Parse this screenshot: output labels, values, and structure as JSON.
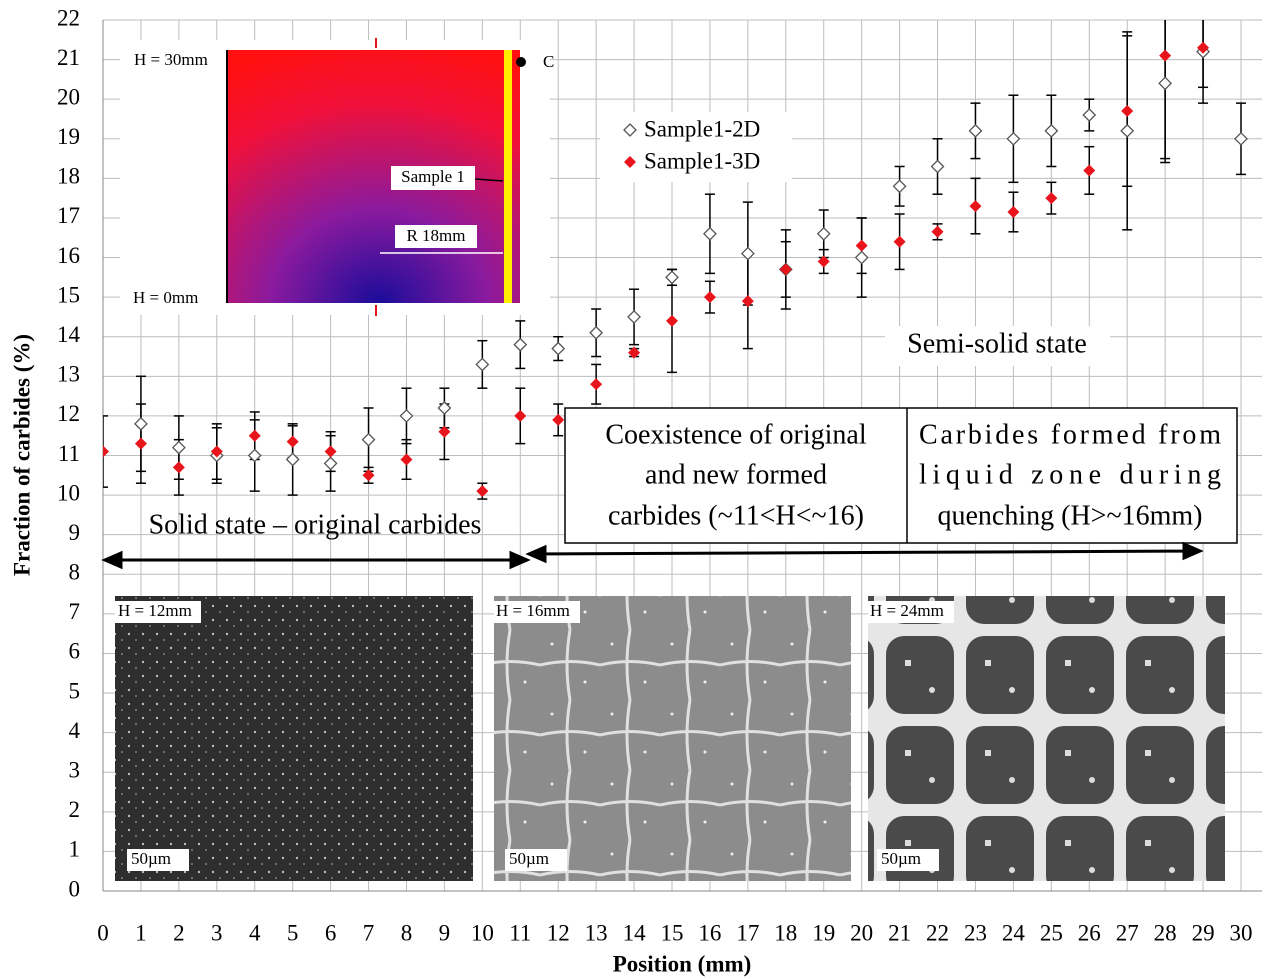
{
  "chart_data": {
    "type": "scatter",
    "xlabel": "Position (mm)",
    "ylabel": "Fraction of carbides (%)",
    "x": [
      0,
      1,
      2,
      3,
      4,
      5,
      6,
      7,
      8,
      9,
      10,
      11,
      12,
      13,
      14,
      15,
      16,
      17,
      18,
      19,
      20,
      21,
      22,
      23,
      24,
      25,
      26,
      27,
      28,
      29,
      30
    ],
    "xlim": [
      0,
      30
    ],
    "ylim": [
      0,
      22
    ],
    "xticks": [
      0,
      1,
      2,
      3,
      4,
      5,
      6,
      7,
      8,
      9,
      10,
      11,
      12,
      13,
      14,
      15,
      16,
      17,
      18,
      19,
      20,
      21,
      22,
      23,
      24,
      25,
      26,
      27,
      28,
      29,
      30
    ],
    "yticks": [
      0,
      1,
      2,
      3,
      4,
      5,
      6,
      7,
      8,
      9,
      10,
      11,
      12,
      13,
      14,
      15,
      16,
      17,
      18,
      19,
      20,
      21,
      22
    ],
    "grid": true,
    "series": [
      {
        "name": "Sample1-2D",
        "color": "#555555",
        "marker": "open-diamond",
        "values": [
          null,
          11.8,
          11.2,
          11.0,
          11.0,
          10.9,
          10.8,
          11.4,
          12.0,
          12.2,
          13.3,
          13.8,
          13.7,
          14.1,
          14.5,
          15.5,
          16.6,
          16.1,
          15.7,
          16.6,
          16.0,
          17.8,
          18.3,
          19.2,
          19.0,
          19.2,
          19.6,
          19.2,
          20.4,
          21.2,
          19.0
        ],
        "errors": [
          null,
          1.2,
          0.8,
          0.7,
          0.9,
          0.9,
          0.7,
          0.8,
          0.7,
          0.5,
          0.6,
          0.6,
          0.3,
          0.6,
          0.7,
          0.2,
          1.0,
          1.3,
          0.7,
          0.6,
          1.0,
          0.5,
          0.7,
          0.7,
          1.1,
          0.9,
          0.4,
          2.5,
          2.0,
          1.3,
          0.9
        ]
      },
      {
        "name": "Sample1-3D",
        "color": "#e8141b",
        "marker": "filled-diamond",
        "values": [
          11.1,
          11.3,
          10.7,
          11.1,
          11.5,
          11.35,
          11.1,
          10.5,
          10.9,
          11.6,
          10.1,
          12.0,
          11.9,
          12.8,
          13.6,
          14.4,
          15.0,
          14.9,
          15.7,
          15.9,
          16.3,
          16.4,
          16.65,
          17.3,
          17.15,
          17.5,
          18.2,
          19.7,
          21.1,
          21.3,
          null
        ],
        "errors": [
          0.9,
          1.0,
          0.7,
          0.7,
          0.6,
          0.4,
          0.5,
          0.2,
          0.5,
          0.7,
          0.2,
          0.7,
          0.4,
          0.5,
          0.1,
          1.3,
          0.4,
          1.2,
          1.0,
          0.3,
          0.7,
          0.7,
          0.2,
          0.7,
          0.5,
          0.4,
          0.6,
          1.9,
          2.6,
          1.0,
          null
        ]
      }
    ],
    "annotations": {
      "solid": "Solid state – original carbides",
      "semi_solid": "Semi-solid state",
      "coexistence": [
        "Coexistence of original",
        "and new formed",
        "carbides (~11<H<~16)"
      ],
      "liquid": [
        "Carbides formed from",
        "liquid zone during",
        "quenching (H>~16mm)"
      ]
    },
    "inset": {
      "top": "H = 30mm",
      "bottom": "H = 0mm",
      "sample": "Sample 1",
      "radius": "R 18mm",
      "point": "C"
    },
    "micrographs": [
      {
        "label": "H = 12mm",
        "scale": "50µm"
      },
      {
        "label": "H = 16mm",
        "scale": "50µm"
      },
      {
        "label": "H = 24mm",
        "scale": "50µm"
      }
    ]
  }
}
